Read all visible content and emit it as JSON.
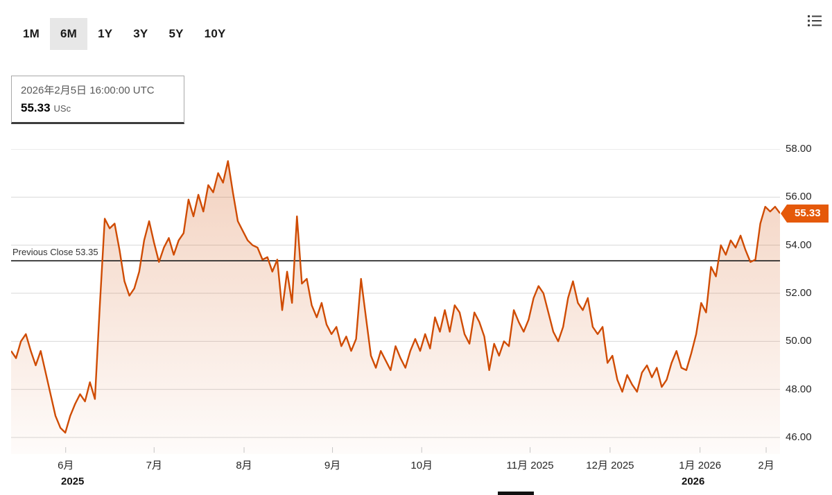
{
  "toolbar": {
    "ranges": [
      {
        "label": "1M",
        "selected": false
      },
      {
        "label": "6M",
        "selected": true
      },
      {
        "label": "1Y",
        "selected": false
      },
      {
        "label": "3Y",
        "selected": false
      },
      {
        "label": "5Y",
        "selected": false
      },
      {
        "label": "10Y",
        "selected": false
      }
    ],
    "menu_icon": "list-menu-icon"
  },
  "tooltip": {
    "datetime": "2026年2月5日 16:00:00 UTC",
    "price": "55.33",
    "unit": "USc"
  },
  "colors": {
    "line": "#cf4b02",
    "fill_top": "rgba(207,75,2,0.25)",
    "fill_bottom": "rgba(207,75,2,0.02)",
    "badge": "#e5590a",
    "grid": "#d8d8d8",
    "prev_close_line": "#1a1a1a",
    "axis_text": "#262626"
  },
  "chart_data": {
    "type": "area",
    "title": "",
    "unit": "USc",
    "ylim": [
      46,
      58
    ],
    "grid": true,
    "legend": "none",
    "y_ticks": [
      {
        "label": "58.00",
        "value": 58
      },
      {
        "label": "56.00",
        "value": 56
      },
      {
        "label": "54.00",
        "value": 54
      },
      {
        "label": "52.00",
        "value": 52
      },
      {
        "label": "50.00",
        "value": 50
      },
      {
        "label": "48.00",
        "value": 48
      },
      {
        "label": "46.00",
        "value": 46
      }
    ],
    "x_ticks": [
      {
        "label": "6月",
        "f": 0.071
      },
      {
        "label": "7月",
        "f": 0.186
      },
      {
        "label": "8月",
        "f": 0.303
      },
      {
        "label": "9月",
        "f": 0.418
      },
      {
        "label": "10月",
        "f": 0.534
      },
      {
        "label": "11月 2025",
        "f": 0.675
      },
      {
        "label": "12月 2025",
        "f": 0.779
      },
      {
        "label": "1月 2026",
        "f": 0.896
      },
      {
        "label": "2月",
        "f": 0.982
      }
    ],
    "year_labels": [
      {
        "label": "2025",
        "f": 0.08
      },
      {
        "label": "2026",
        "f": 0.887
      }
    ],
    "previous_close": {
      "label": "Previous Close 53.35",
      "value": 53.35
    },
    "last_price": {
      "label": "55.33",
      "value": 55.33
    },
    "values": [
      49.6,
      49.3,
      50.0,
      50.3,
      49.6,
      49.0,
      49.6,
      48.7,
      47.8,
      46.9,
      46.4,
      46.2,
      46.9,
      47.4,
      47.8,
      47.5,
      48.3,
      47.6,
      51.5,
      55.1,
      54.7,
      54.9,
      53.8,
      52.5,
      51.9,
      52.2,
      52.9,
      54.2,
      55.0,
      54.1,
      53.3,
      53.9,
      54.3,
      53.6,
      54.2,
      54.5,
      55.9,
      55.2,
      56.1,
      55.4,
      56.5,
      56.2,
      57.0,
      56.6,
      57.5,
      56.2,
      55.0,
      54.6,
      54.2,
      54.0,
      53.9,
      53.4,
      53.5,
      52.9,
      53.4,
      51.3,
      52.9,
      51.6,
      55.2,
      52.4,
      52.6,
      51.5,
      51.0,
      51.6,
      50.7,
      50.3,
      50.6,
      49.8,
      50.2,
      49.6,
      50.1,
      52.6,
      51.0,
      49.4,
      48.9,
      49.6,
      49.2,
      48.8,
      49.8,
      49.3,
      48.9,
      49.6,
      50.1,
      49.6,
      50.3,
      49.7,
      51.0,
      50.4,
      51.3,
      50.4,
      51.5,
      51.2,
      50.3,
      49.9,
      51.2,
      50.8,
      50.2,
      48.8,
      49.9,
      49.4,
      50.0,
      49.8,
      51.3,
      50.8,
      50.4,
      50.9,
      51.8,
      52.3,
      52.0,
      51.2,
      50.4,
      50.0,
      50.6,
      51.8,
      52.5,
      51.6,
      51.3,
      51.8,
      50.6,
      50.3,
      50.6,
      49.1,
      49.4,
      48.4,
      47.9,
      48.6,
      48.2,
      47.9,
      48.7,
      49.0,
      48.5,
      48.9,
      48.1,
      48.4,
      49.1,
      49.6,
      48.9,
      48.8,
      49.5,
      50.3,
      51.6,
      51.2,
      53.1,
      52.7,
      54.0,
      53.6,
      54.2,
      53.9,
      54.4,
      53.8,
      53.3,
      53.4,
      54.9,
      55.6,
      55.4,
      55.6,
      55.33
    ]
  }
}
